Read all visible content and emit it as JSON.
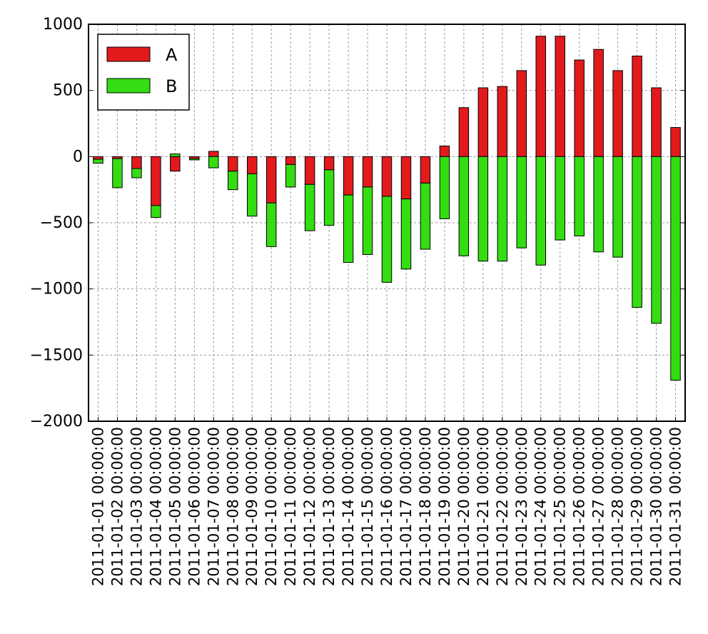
{
  "chart_data": {
    "type": "bar",
    "stacked": true,
    "categories": [
      "2011-01-01 00:00:00",
      "2011-01-02 00:00:00",
      "2011-01-03 00:00:00",
      "2011-01-04 00:00:00",
      "2011-01-05 00:00:00",
      "2011-01-06 00:00:00",
      "2011-01-07 00:00:00",
      "2011-01-08 00:00:00",
      "2011-01-09 00:00:00",
      "2011-01-10 00:00:00",
      "2011-01-11 00:00:00",
      "2011-01-12 00:00:00",
      "2011-01-13 00:00:00",
      "2011-01-14 00:00:00",
      "2011-01-15 00:00:00",
      "2011-01-16 00:00:00",
      "2011-01-17 00:00:00",
      "2011-01-18 00:00:00",
      "2011-01-19 00:00:00",
      "2011-01-20 00:00:00",
      "2011-01-21 00:00:00",
      "2011-01-22 00:00:00",
      "2011-01-23 00:00:00",
      "2011-01-24 00:00:00",
      "2011-01-25 00:00:00",
      "2011-01-26 00:00:00",
      "2011-01-27 00:00:00",
      "2011-01-28 00:00:00",
      "2011-01-29 00:00:00",
      "2011-01-30 00:00:00",
      "2011-01-31 00:00:00"
    ],
    "series": [
      {
        "name": "A",
        "color": "#e31a1c",
        "values": [
          -20,
          -15,
          -90,
          -370,
          -110,
          -15,
          40,
          -110,
          -130,
          -350,
          -60,
          -210,
          -100,
          -290,
          -230,
          -300,
          -320,
          -200,
          80,
          370,
          520,
          530,
          650,
          910,
          910,
          730,
          810,
          650,
          760,
          520,
          220
        ]
      },
      {
        "name": "B",
        "color": "#33dd11",
        "values": [
          -30,
          -220,
          -70,
          -90,
          20,
          -10,
          -85,
          -140,
          -320,
          -330,
          -170,
          -350,
          -420,
          -510,
          -510,
          -650,
          -530,
          -500,
          -470,
          -750,
          -790,
          -790,
          -690,
          -820,
          -630,
          -600,
          -720,
          -760,
          -1140,
          -1260,
          -1690
        ]
      }
    ],
    "ylim": [
      -2000,
      1000
    ],
    "yticks": [
      1000,
      500,
      0,
      -500,
      -1000,
      -1500,
      -2000
    ],
    "ytick_labels": [
      "1000",
      "500",
      "0",
      "−500",
      "−1000",
      "−1500",
      "−2000"
    ],
    "grid": true,
    "legend_position": "top-left",
    "title": "",
    "xlabel": "",
    "ylabel": ""
  }
}
